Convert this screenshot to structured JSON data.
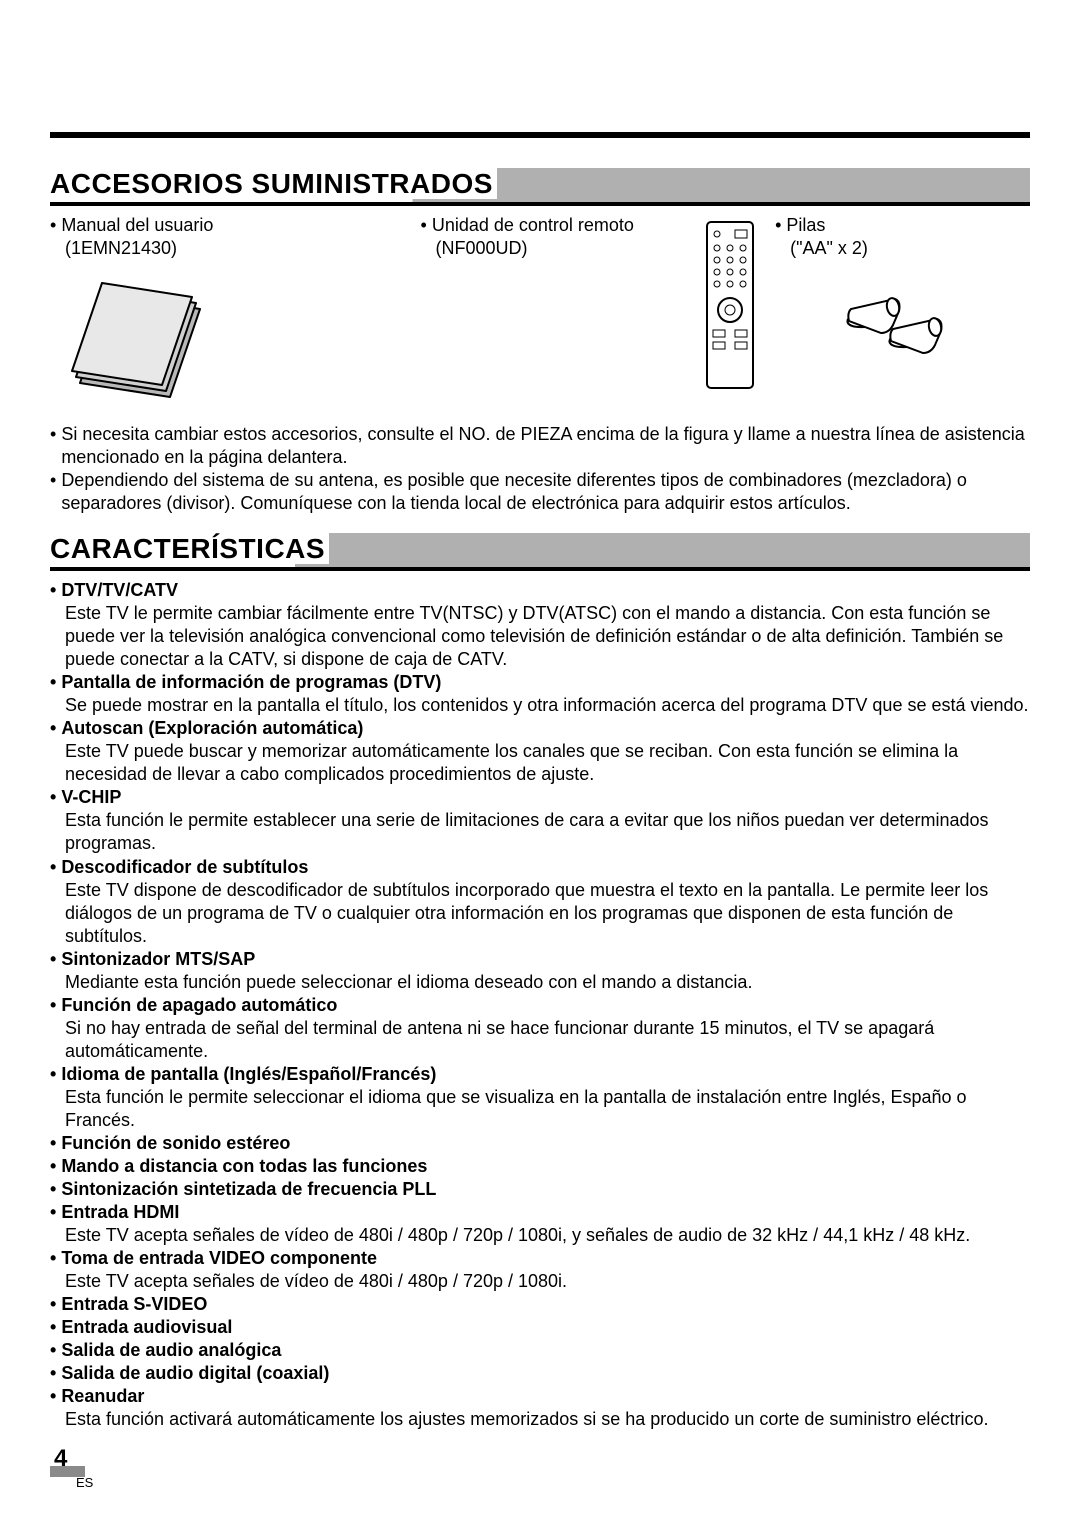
{
  "page": {
    "number": "4",
    "lang_code": "ES"
  },
  "colors": {
    "rule": "#000000",
    "heading_shade": "#b0b0b0",
    "footer_bar": "#8a8a8a",
    "text": "#000000",
    "bg": "#ffffff"
  },
  "typography": {
    "body_fontsize_pt": 13,
    "heading_fontsize_pt": 21,
    "heading_weight": "700"
  },
  "sections": {
    "accesorios": {
      "heading": "ACCESORIOS SUMINISTRADOS",
      "items": [
        {
          "label": "Manual del usuario",
          "part": "(1EMN21430)",
          "icon": "manual-book-icon"
        },
        {
          "label": "Unidad de control remoto",
          "part": "(NF000UD)",
          "icon": "remote-control-icon"
        },
        {
          "label": "Pilas",
          "part": "(\"AA\" x 2)",
          "icon": "batteries-icon"
        }
      ],
      "notes": [
        "Si necesita cambiar estos accesorios, consulte el NO. de PIEZA encima de la figura y llame a nuestra línea de asistencia mencionado en la página delantera.",
        "Dependiendo del sistema de su antena, es posible que necesite diferentes tipos de combinadores (mezcladora) o separadores (divisor). Comuníquese con la tienda local de electrónica para adquirir estos artículos."
      ]
    },
    "caracteristicas": {
      "heading": "CARACTERÍSTICAS",
      "features": [
        {
          "title": "DTV/TV/CATV",
          "desc": "Este TV le permite cambiar fácilmente entre TV(NTSC) y DTV(ATSC) con el mando a distancia. Con esta función se puede ver la televisión analógica convencional como televisión de definición estándar o de alta definición. También se puede conectar a la CATV, si dispone de caja de CATV."
        },
        {
          "title": "Pantalla de información de programas (DTV)",
          "desc": "Se puede mostrar en la pantalla el título, los contenidos y otra información acerca del programa DTV que se está viendo."
        },
        {
          "title": "Autoscan (Exploración automática)",
          "desc": "Este TV puede buscar y memorizar automáticamente los canales que se reciban. Con esta función se elimina la necesidad de llevar a cabo complicados procedimientos de ajuste."
        },
        {
          "title": "V-CHIP",
          "desc": "Esta función le permite establecer una serie de limitaciones de cara a evitar que los niños puedan ver determinados programas."
        },
        {
          "title": "Descodificador de subtítulos",
          "desc": "Este TV dispone de descodificador de subtítulos incorporado que muestra el texto en la pantalla. Le permite leer los diálogos de un programa de TV o cualquier otra información en los programas que disponen de esta función de subtítulos."
        },
        {
          "title": "Sintonizador MTS/SAP",
          "desc": "Mediante esta función puede seleccionar el idioma deseado con el mando a distancia."
        },
        {
          "title": "Función de apagado automático",
          "desc": "Si no hay entrada de señal del terminal de antena ni se hace funcionar durante 15 minutos, el TV se apagará automáticamente."
        },
        {
          "title": "Idioma de pantalla (Inglés/Español/Francés)",
          "desc": "Esta función le permite seleccionar el idioma que se visualiza en la pantalla de instalación entre Inglés, Españo o Francés."
        },
        {
          "title": "Función de sonido estéreo",
          "desc": ""
        },
        {
          "title": "Mando a distancia con todas las funciones",
          "desc": ""
        },
        {
          "title": "Sintonización sintetizada de frecuencia PLL",
          "desc": ""
        },
        {
          "title": "Entrada HDMI",
          "desc": "Este TV acepta señales de vídeo de 480i / 480p / 720p / 1080i, y señales de audio de 32 kHz / 44,1 kHz / 48 kHz."
        },
        {
          "title": "Toma de entrada VIDEO componente",
          "desc": "Este TV acepta señales de vídeo de 480i / 480p / 720p / 1080i."
        },
        {
          "title": "Entrada S-VIDEO",
          "desc": ""
        },
        {
          "title": "Entrada audiovisual",
          "desc": ""
        },
        {
          "title": "Salida de audio analógica",
          "desc": ""
        },
        {
          "title": "Salida de audio digital (coaxial)",
          "desc": ""
        },
        {
          "title": "Reanudar",
          "desc": "Esta función activará automáticamente los ajustes memorizados si se ha producido un corte de suministro eléctrico."
        }
      ]
    }
  }
}
